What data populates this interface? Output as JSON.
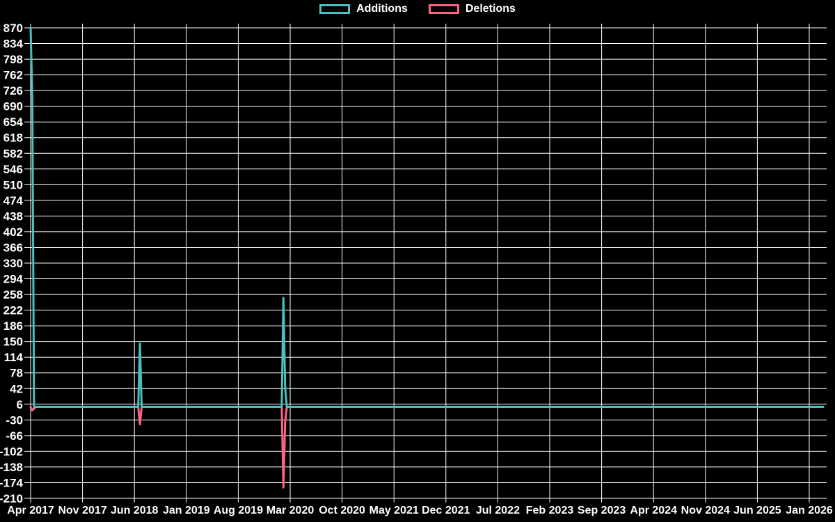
{
  "legend": {
    "items": [
      {
        "label": "Additions",
        "color": "#4bc0c0"
      },
      {
        "label": "Deletions",
        "color": "#ff6384"
      }
    ]
  },
  "chart_data": {
    "type": "line",
    "title": "",
    "background": "#000000",
    "grid": {
      "shown": true,
      "color": "#ffffff"
    },
    "legend_position": "top",
    "x_axis": {
      "unit": "week",
      "start": "Apr 2017",
      "end": "Mar 2026",
      "num_points": 465,
      "tick_labels": [
        "Apr 2017",
        "Nov 2017",
        "Jun 2018",
        "Jan 2019",
        "Aug 2019",
        "Mar 2020",
        "Oct 2020",
        "May 2021",
        "Dec 2021",
        "Jul 2022",
        "Feb 2023",
        "Sep 2023",
        "Apr 2024",
        "Nov 2024",
        "Jun 2025",
        "Jan 2026"
      ]
    },
    "y_axis": {
      "min": -210,
      "max": 870,
      "step": 36,
      "tick_labels": [
        870,
        834,
        798,
        762,
        726,
        690,
        654,
        618,
        582,
        546,
        510,
        474,
        438,
        402,
        366,
        330,
        294,
        258,
        222,
        186,
        150,
        114,
        78,
        42,
        6,
        -30,
        -66,
        -102,
        -138,
        -174,
        -210
      ]
    },
    "series": [
      {
        "name": "Additions",
        "color": "#4bc0c0",
        "default_value": 0,
        "nonzero_points": [
          {
            "index": 0,
            "date": "Apr 2017",
            "value": 870
          },
          {
            "index": 1,
            "date": "Apr 2017",
            "value": 705
          },
          {
            "index": 64,
            "date": "Jul 2018",
            "value": 145
          },
          {
            "index": 148,
            "date": "Mar 2020",
            "value": 250
          },
          {
            "index": 149,
            "date": "Mar 2020",
            "value": 45
          }
        ]
      },
      {
        "name": "Deletions",
        "color": "#ff6384",
        "default_value": 0,
        "nonzero_points": [
          {
            "index": 1,
            "date": "Apr 2017",
            "value": -8
          },
          {
            "index": 2,
            "date": "May 2017",
            "value": -4
          },
          {
            "index": 64,
            "date": "Jul 2018",
            "value": -40
          },
          {
            "index": 148,
            "date": "Mar 2020",
            "value": -185
          },
          {
            "index": 149,
            "date": "Mar 2020",
            "value": -35
          }
        ]
      }
    ]
  }
}
